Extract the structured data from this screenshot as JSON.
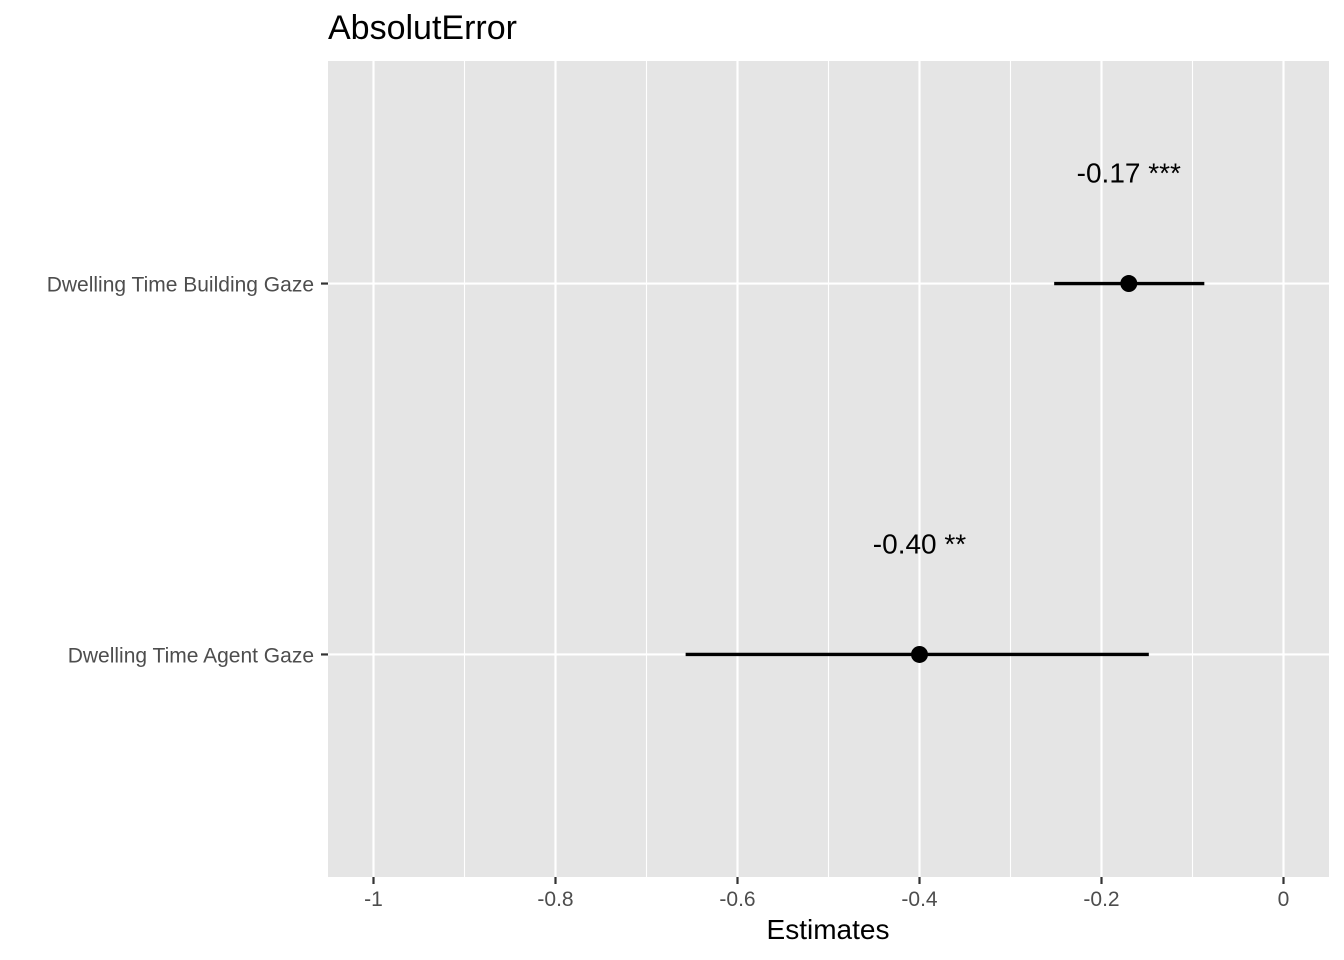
{
  "chart_data": {
    "type": "forest",
    "title": "AbsolutError",
    "xlabel": "Estimates",
    "ylabel": "",
    "xlim": [
      -1.05,
      0.05
    ],
    "x_ticks": [
      -1,
      -0.8,
      -0.6,
      -0.4,
      -0.2,
      0
    ],
    "x_tick_labels": [
      "-1",
      "-0.8",
      "-0.6",
      "-0.4",
      "-0.2",
      "0"
    ],
    "grid": true,
    "legend": "none",
    "terms": [
      {
        "label": "Dwelling Time Building Gaze",
        "estimate": -0.17,
        "ci_low": -0.252,
        "ci_high": -0.087,
        "value_label": "-0.17 ***"
      },
      {
        "label": "Dwelling Time Agent Gaze",
        "estimate": -0.4,
        "ci_low": -0.657,
        "ci_high": -0.148,
        "value_label": "-0.40 **"
      }
    ],
    "colors": {
      "panel": "#e5e5e5",
      "grid": "#ffffff",
      "point": "#000000"
    }
  }
}
